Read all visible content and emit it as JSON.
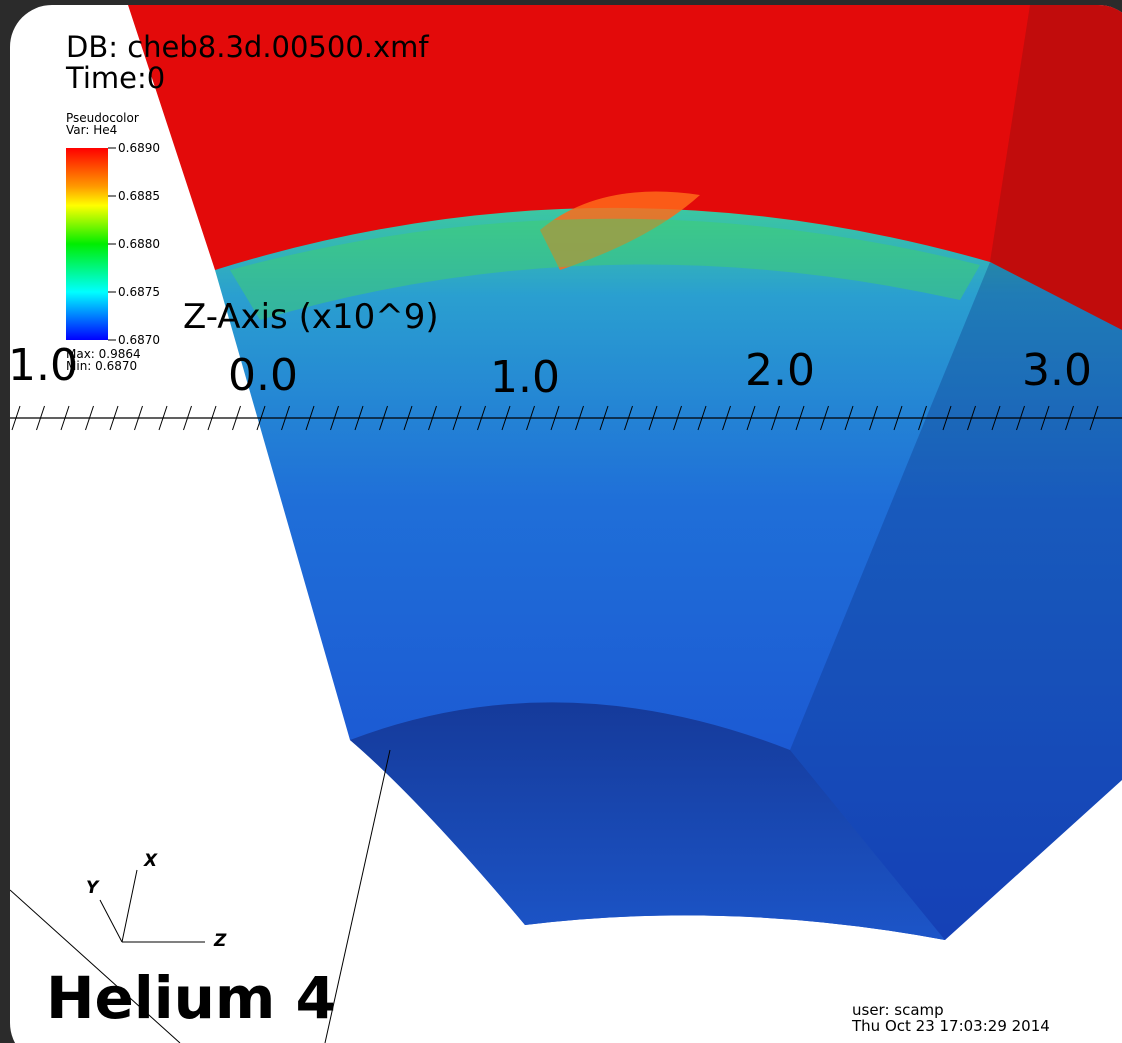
{
  "header": {
    "database": "DB: cheb8.3d.00500.xmf",
    "time": "Time:0"
  },
  "legend": {
    "plot": "Pseudocolor",
    "variable": "Var: He4",
    "ticks": [
      "0.6890",
      "0.6885",
      "0.6880",
      "0.6875",
      "0.6870"
    ],
    "max": "Max: 0.9864",
    "min": "Min: 0.6870"
  },
  "axis": {
    "title": "Z-Axis (x10^9)",
    "labels": [
      "1.0",
      "0.0",
      "1.0",
      "2.0",
      "3.0"
    ]
  },
  "triad": {
    "x": "X",
    "y": "Y",
    "z": "Z"
  },
  "caption": "Helium 4",
  "footer": {
    "user": "user: scamp",
    "date": "Thu Oct 23 17:03:29 2014"
  }
}
